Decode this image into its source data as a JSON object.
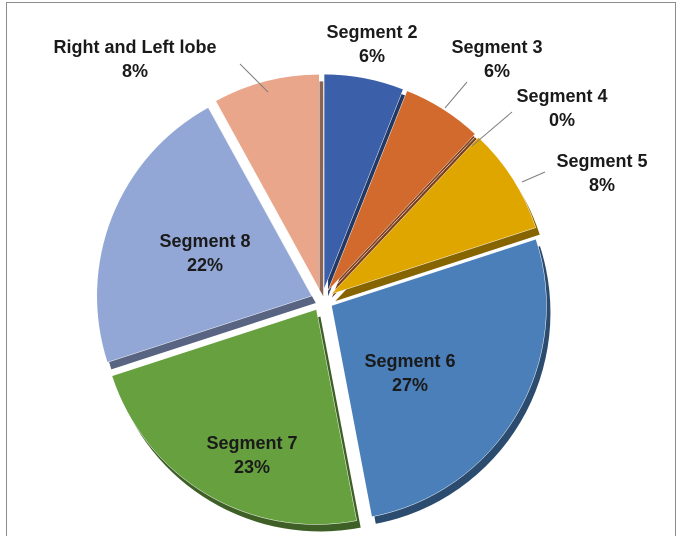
{
  "chart_data": {
    "type": "pie",
    "categories": [
      "Segment 2",
      "Segment 3",
      "Segment 4",
      "Segment 5",
      "Segment 6",
      "Segment 7",
      "Segment 8",
      "Right and Left lobe"
    ],
    "values": [
      6,
      6,
      0,
      8,
      27,
      23,
      22,
      8
    ],
    "value_labels": [
      "6%",
      "6%",
      "0%",
      "8%",
      "27%",
      "23%",
      "22%",
      "8%"
    ],
    "colors": [
      "#3b5fa9",
      "#d2692d",
      "#9ea3a8",
      "#dfa600",
      "#4a7fb9",
      "#67a03f",
      "#93a7d7",
      "#eaa68b"
    ]
  }
}
